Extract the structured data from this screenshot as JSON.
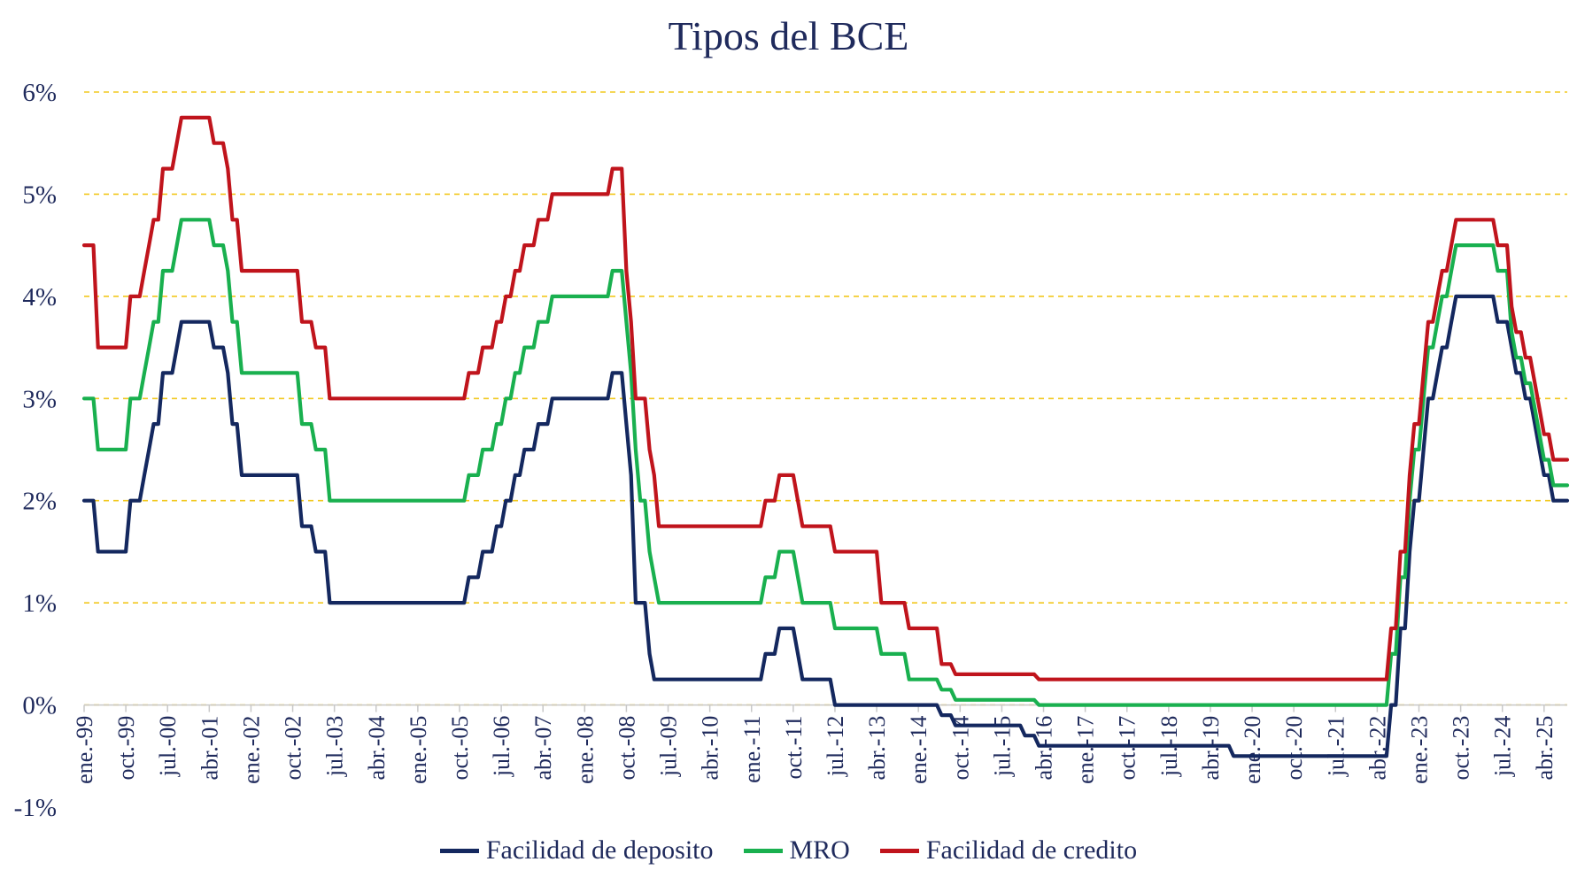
{
  "chart_data": {
    "type": "line",
    "title": "Tipos del BCE",
    "ylim": [
      -1,
      6
    ],
    "y_ticks": [
      "-1%",
      "0%",
      "1%",
      "2%",
      "3%",
      "4%",
      "5%",
      "6%"
    ],
    "y_tick_values": [
      -1,
      0,
      1,
      2,
      3,
      4,
      5,
      6
    ],
    "x_range": [
      "1999-01",
      "2025-09"
    ],
    "x_ticks": [
      "ene.-99",
      "oct.-99",
      "jul.-00",
      "abr.-01",
      "ene.-02",
      "oct.-02",
      "jul.-03",
      "abr.-04",
      "ene.-05",
      "oct.-05",
      "jul.-06",
      "abr.-07",
      "ene.-08",
      "oct.-08",
      "jul.-09",
      "abr.-10",
      "ene.-11",
      "oct.-11",
      "jul.-12",
      "abr.-13",
      "ene.-14",
      "oct.-14",
      "jul.-15",
      "abr.-16",
      "ene.-17",
      "oct.-17",
      "jul.-18",
      "abr.-19",
      "ene.-20",
      "oct.-20",
      "jul.-21",
      "abr.-22",
      "ene.-23",
      "oct.-23",
      "jul.-24",
      "abr.-25"
    ],
    "x_tick_dates": [
      "1999-01",
      "1999-10",
      "2000-07",
      "2001-04",
      "2002-01",
      "2002-10",
      "2003-07",
      "2004-04",
      "2005-01",
      "2005-10",
      "2006-07",
      "2007-04",
      "2008-01",
      "2008-10",
      "2009-07",
      "2010-04",
      "2011-01",
      "2011-10",
      "2012-07",
      "2013-04",
      "2014-01",
      "2014-10",
      "2015-07",
      "2016-04",
      "2017-01",
      "2017-10",
      "2018-07",
      "2019-04",
      "2020-01",
      "2020-10",
      "2021-07",
      "2022-04",
      "2023-01",
      "2023-10",
      "2024-07",
      "2025-04"
    ],
    "grid": "horizontal dashed",
    "legend_position": "bottom",
    "series": [
      {
        "name": "Facilidad de deposito",
        "color": "#14285f",
        "points": [
          [
            "1999-01",
            2.0
          ],
          [
            "1999-04",
            1.5
          ],
          [
            "1999-11",
            2.0
          ],
          [
            "2000-02",
            2.25
          ],
          [
            "2000-03",
            2.5
          ],
          [
            "2000-04",
            2.75
          ],
          [
            "2000-06",
            3.25
          ],
          [
            "2000-09",
            3.5
          ],
          [
            "2000-10",
            3.75
          ],
          [
            "2001-05",
            3.5
          ],
          [
            "2001-08",
            3.25
          ],
          [
            "2001-09",
            2.75
          ],
          [
            "2001-11",
            2.25
          ],
          [
            "2002-12",
            1.75
          ],
          [
            "2003-03",
            1.5
          ],
          [
            "2003-06",
            1.0
          ],
          [
            "2005-12",
            1.25
          ],
          [
            "2006-03",
            1.5
          ],
          [
            "2006-06",
            1.75
          ],
          [
            "2006-08",
            2.0
          ],
          [
            "2006-10",
            2.25
          ],
          [
            "2006-12",
            2.5
          ],
          [
            "2007-03",
            2.75
          ],
          [
            "2007-06",
            3.0
          ],
          [
            "2008-07",
            3.25
          ],
          [
            "2008-10",
            2.75
          ],
          [
            "2008-11",
            2.25
          ],
          [
            "2008-12",
            1.0
          ],
          [
            "2009-01",
            1.0
          ],
          [
            "2009-03",
            0.5
          ],
          [
            "2009-04",
            0.25
          ],
          [
            "2011-04",
            0.5
          ],
          [
            "2011-07",
            0.75
          ],
          [
            "2011-11",
            0.5
          ],
          [
            "2011-12",
            0.25
          ],
          [
            "2012-07",
            0.0
          ],
          [
            "2014-06",
            -0.1
          ],
          [
            "2014-09",
            -0.2
          ],
          [
            "2015-12",
            -0.3
          ],
          [
            "2016-03",
            -0.4
          ],
          [
            "2019-09",
            -0.5
          ],
          [
            "2022-07",
            0.0
          ],
          [
            "2022-09",
            0.75
          ],
          [
            "2022-11",
            1.5
          ],
          [
            "2022-12",
            2.0
          ],
          [
            "2023-02",
            2.5
          ],
          [
            "2023-03",
            3.0
          ],
          [
            "2023-05",
            3.25
          ],
          [
            "2023-06",
            3.5
          ],
          [
            "2023-08",
            3.75
          ],
          [
            "2023-09",
            4.0
          ],
          [
            "2024-06",
            3.75
          ],
          [
            "2024-09",
            3.5
          ],
          [
            "2024-10",
            3.25
          ],
          [
            "2024-12",
            3.0
          ],
          [
            "2025-02",
            2.75
          ],
          [
            "2025-03",
            2.5
          ],
          [
            "2025-04",
            2.25
          ],
          [
            "2025-06",
            2.0
          ],
          [
            "2025-09",
            2.0
          ]
        ]
      },
      {
        "name": "MRO",
        "color": "#19b04f",
        "points": [
          [
            "1999-01",
            3.0
          ],
          [
            "1999-04",
            2.5
          ],
          [
            "1999-11",
            3.0
          ],
          [
            "2000-02",
            3.25
          ],
          [
            "2000-03",
            3.5
          ],
          [
            "2000-04",
            3.75
          ],
          [
            "2000-06",
            4.25
          ],
          [
            "2000-09",
            4.5
          ],
          [
            "2000-10",
            4.75
          ],
          [
            "2001-05",
            4.5
          ],
          [
            "2001-08",
            4.25
          ],
          [
            "2001-09",
            3.75
          ],
          [
            "2001-11",
            3.25
          ],
          [
            "2002-12",
            2.75
          ],
          [
            "2003-03",
            2.5
          ],
          [
            "2003-06",
            2.0
          ],
          [
            "2005-12",
            2.25
          ],
          [
            "2006-03",
            2.5
          ],
          [
            "2006-06",
            2.75
          ],
          [
            "2006-08",
            3.0
          ],
          [
            "2006-10",
            3.25
          ],
          [
            "2006-12",
            3.5
          ],
          [
            "2007-03",
            3.75
          ],
          [
            "2007-06",
            4.0
          ],
          [
            "2008-07",
            4.25
          ],
          [
            "2008-10",
            3.75
          ],
          [
            "2008-11",
            3.25
          ],
          [
            "2008-12",
            2.5
          ],
          [
            "2009-01",
            2.0
          ],
          [
            "2009-03",
            1.5
          ],
          [
            "2009-04",
            1.25
          ],
          [
            "2009-05",
            1.0
          ],
          [
            "2011-04",
            1.25
          ],
          [
            "2011-07",
            1.5
          ],
          [
            "2011-11",
            1.25
          ],
          [
            "2011-12",
            1.0
          ],
          [
            "2012-07",
            0.75
          ],
          [
            "2013-05",
            0.5
          ],
          [
            "2013-11",
            0.25
          ],
          [
            "2014-06",
            0.15
          ],
          [
            "2014-09",
            0.05
          ],
          [
            "2016-03",
            0.0
          ],
          [
            "2022-07",
            0.5
          ],
          [
            "2022-09",
            1.25
          ],
          [
            "2022-11",
            2.0
          ],
          [
            "2022-12",
            2.5
          ],
          [
            "2023-02",
            3.0
          ],
          [
            "2023-03",
            3.5
          ],
          [
            "2023-05",
            3.75
          ],
          [
            "2023-06",
            4.0
          ],
          [
            "2023-08",
            4.25
          ],
          [
            "2023-09",
            4.5
          ],
          [
            "2024-06",
            4.25
          ],
          [
            "2024-09",
            3.65
          ],
          [
            "2024-10",
            3.4
          ],
          [
            "2024-12",
            3.15
          ],
          [
            "2025-02",
            2.9
          ],
          [
            "2025-03",
            2.65
          ],
          [
            "2025-04",
            2.4
          ],
          [
            "2025-06",
            2.15
          ],
          [
            "2025-09",
            2.15
          ]
        ]
      },
      {
        "name": "Facilidad de credito",
        "color": "#c0141c",
        "points": [
          [
            "1999-01",
            4.5
          ],
          [
            "1999-04",
            3.5
          ],
          [
            "1999-11",
            4.0
          ],
          [
            "2000-02",
            4.25
          ],
          [
            "2000-03",
            4.5
          ],
          [
            "2000-04",
            4.75
          ],
          [
            "2000-06",
            5.25
          ],
          [
            "2000-09",
            5.5
          ],
          [
            "2000-10",
            5.75
          ],
          [
            "2001-05",
            5.5
          ],
          [
            "2001-08",
            5.25
          ],
          [
            "2001-09",
            4.75
          ],
          [
            "2001-11",
            4.25
          ],
          [
            "2002-12",
            3.75
          ],
          [
            "2003-03",
            3.5
          ],
          [
            "2003-06",
            3.0
          ],
          [
            "2005-12",
            3.25
          ],
          [
            "2006-03",
            3.5
          ],
          [
            "2006-06",
            3.75
          ],
          [
            "2006-08",
            4.0
          ],
          [
            "2006-10",
            4.25
          ],
          [
            "2006-12",
            4.5
          ],
          [
            "2007-03",
            4.75
          ],
          [
            "2007-06",
            5.0
          ],
          [
            "2008-07",
            5.25
          ],
          [
            "2008-10",
            4.25
          ],
          [
            "2008-11",
            3.75
          ],
          [
            "2008-12",
            3.0
          ],
          [
            "2009-01",
            3.0
          ],
          [
            "2009-03",
            2.5
          ],
          [
            "2009-04",
            2.25
          ],
          [
            "2009-05",
            1.75
          ],
          [
            "2011-04",
            2.0
          ],
          [
            "2011-07",
            2.25
          ],
          [
            "2011-11",
            2.0
          ],
          [
            "2011-12",
            1.75
          ],
          [
            "2012-07",
            1.5
          ],
          [
            "2013-05",
            1.0
          ],
          [
            "2013-11",
            0.75
          ],
          [
            "2014-06",
            0.4
          ],
          [
            "2014-09",
            0.3
          ],
          [
            "2016-03",
            0.25
          ],
          [
            "2022-07",
            0.75
          ],
          [
            "2022-09",
            1.5
          ],
          [
            "2022-11",
            2.25
          ],
          [
            "2022-12",
            2.75
          ],
          [
            "2023-02",
            3.25
          ],
          [
            "2023-03",
            3.75
          ],
          [
            "2023-05",
            4.0
          ],
          [
            "2023-06",
            4.25
          ],
          [
            "2023-08",
            4.5
          ],
          [
            "2023-09",
            4.75
          ],
          [
            "2024-06",
            4.5
          ],
          [
            "2024-09",
            3.9
          ],
          [
            "2024-10",
            3.65
          ],
          [
            "2024-12",
            3.4
          ],
          [
            "2025-02",
            3.15
          ],
          [
            "2025-03",
            2.9
          ],
          [
            "2025-04",
            2.65
          ],
          [
            "2025-06",
            2.4
          ],
          [
            "2025-09",
            2.4
          ]
        ]
      }
    ]
  }
}
